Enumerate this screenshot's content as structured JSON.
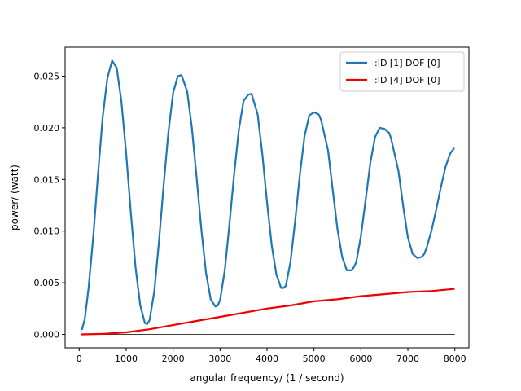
{
  "chart_data": {
    "type": "line",
    "title": "",
    "xlabel": "angular frequency/ (1 / second)",
    "ylabel": "power/ (watt)",
    "xlim": [
      -300,
      8300
    ],
    "ylim": [
      -0.0013,
      0.0278
    ],
    "xticks": [
      0,
      1000,
      2000,
      3000,
      4000,
      5000,
      6000,
      7000,
      8000
    ],
    "xtick_labels": [
      "0",
      "1000",
      "2000",
      "3000",
      "4000",
      "5000",
      "6000",
      "7000",
      "8000"
    ],
    "yticks": [
      0.0,
      0.005,
      0.01,
      0.015,
      0.02,
      0.025
    ],
    "ytick_labels": [
      "0.000",
      "0.005",
      "0.010",
      "0.015",
      "0.020",
      "0.025"
    ],
    "grid": false,
    "legend_position": "top-right",
    "baseline": {
      "y": 0.0,
      "x_range": [
        60,
        8000
      ],
      "color": "#000000"
    },
    "series": [
      {
        "name": ":ID [1] DOF [0]",
        "color": "#1f77b4",
        "x": [
          60,
          120,
          200,
          300,
          400,
          500,
          600,
          700,
          800,
          900,
          1000,
          1100,
          1200,
          1300,
          1400,
          1450,
          1500,
          1600,
          1700,
          1800,
          1900,
          2000,
          2100,
          2180,
          2300,
          2400,
          2500,
          2600,
          2700,
          2800,
          2900,
          2950,
          3000,
          3100,
          3200,
          3300,
          3400,
          3500,
          3600,
          3670,
          3800,
          3900,
          4000,
          4100,
          4200,
          4300,
          4350,
          4400,
          4500,
          4600,
          4700,
          4800,
          4900,
          5000,
          5100,
          5150,
          5300,
          5400,
          5500,
          5600,
          5700,
          5800,
          5850,
          5900,
          6000,
          6100,
          6200,
          6300,
          6400,
          6500,
          6600,
          6640,
          6800,
          6900,
          7000,
          7100,
          7200,
          7300,
          7350,
          7400,
          7500,
          7600,
          7700,
          7800,
          7900,
          7980
        ],
        "y": [
          0.0005,
          0.0015,
          0.0045,
          0.0095,
          0.0155,
          0.021,
          0.0248,
          0.0265,
          0.0258,
          0.0225,
          0.0175,
          0.0118,
          0.0065,
          0.0028,
          0.0011,
          0.001,
          0.0014,
          0.0042,
          0.009,
          0.0145,
          0.0196,
          0.0234,
          0.025,
          0.0251,
          0.0235,
          0.02,
          0.0152,
          0.0102,
          0.006,
          0.0034,
          0.0027,
          0.0028,
          0.0033,
          0.0062,
          0.0107,
          0.0155,
          0.0198,
          0.0226,
          0.0232,
          0.0233,
          0.0213,
          0.0175,
          0.0128,
          0.0086,
          0.0058,
          0.0045,
          0.0045,
          0.0047,
          0.007,
          0.011,
          0.0155,
          0.0192,
          0.0212,
          0.0215,
          0.0213,
          0.0208,
          0.0178,
          0.014,
          0.0102,
          0.0075,
          0.0062,
          0.0062,
          0.0065,
          0.007,
          0.0095,
          0.013,
          0.0166,
          0.0191,
          0.02,
          0.0199,
          0.0195,
          0.019,
          0.0158,
          0.0124,
          0.0094,
          0.0078,
          0.0074,
          0.0075,
          0.0078,
          0.0084,
          0.01,
          0.012,
          0.0142,
          0.0162,
          0.0175,
          0.018
        ]
      },
      {
        "name": ":ID [4] DOF [0]",
        "color": "#ee0000",
        "x": [
          60,
          500,
          1000,
          1500,
          2000,
          2500,
          3000,
          3500,
          4000,
          4500,
          5000,
          5500,
          6000,
          6500,
          7000,
          7500,
          7980
        ],
        "y": [
          0.0,
          5e-05,
          0.0002,
          0.0005,
          0.0009,
          0.0013,
          0.0017,
          0.0021,
          0.0025,
          0.0028,
          0.0032,
          0.0034,
          0.0037,
          0.0039,
          0.0041,
          0.0042,
          0.0044
        ]
      }
    ]
  }
}
